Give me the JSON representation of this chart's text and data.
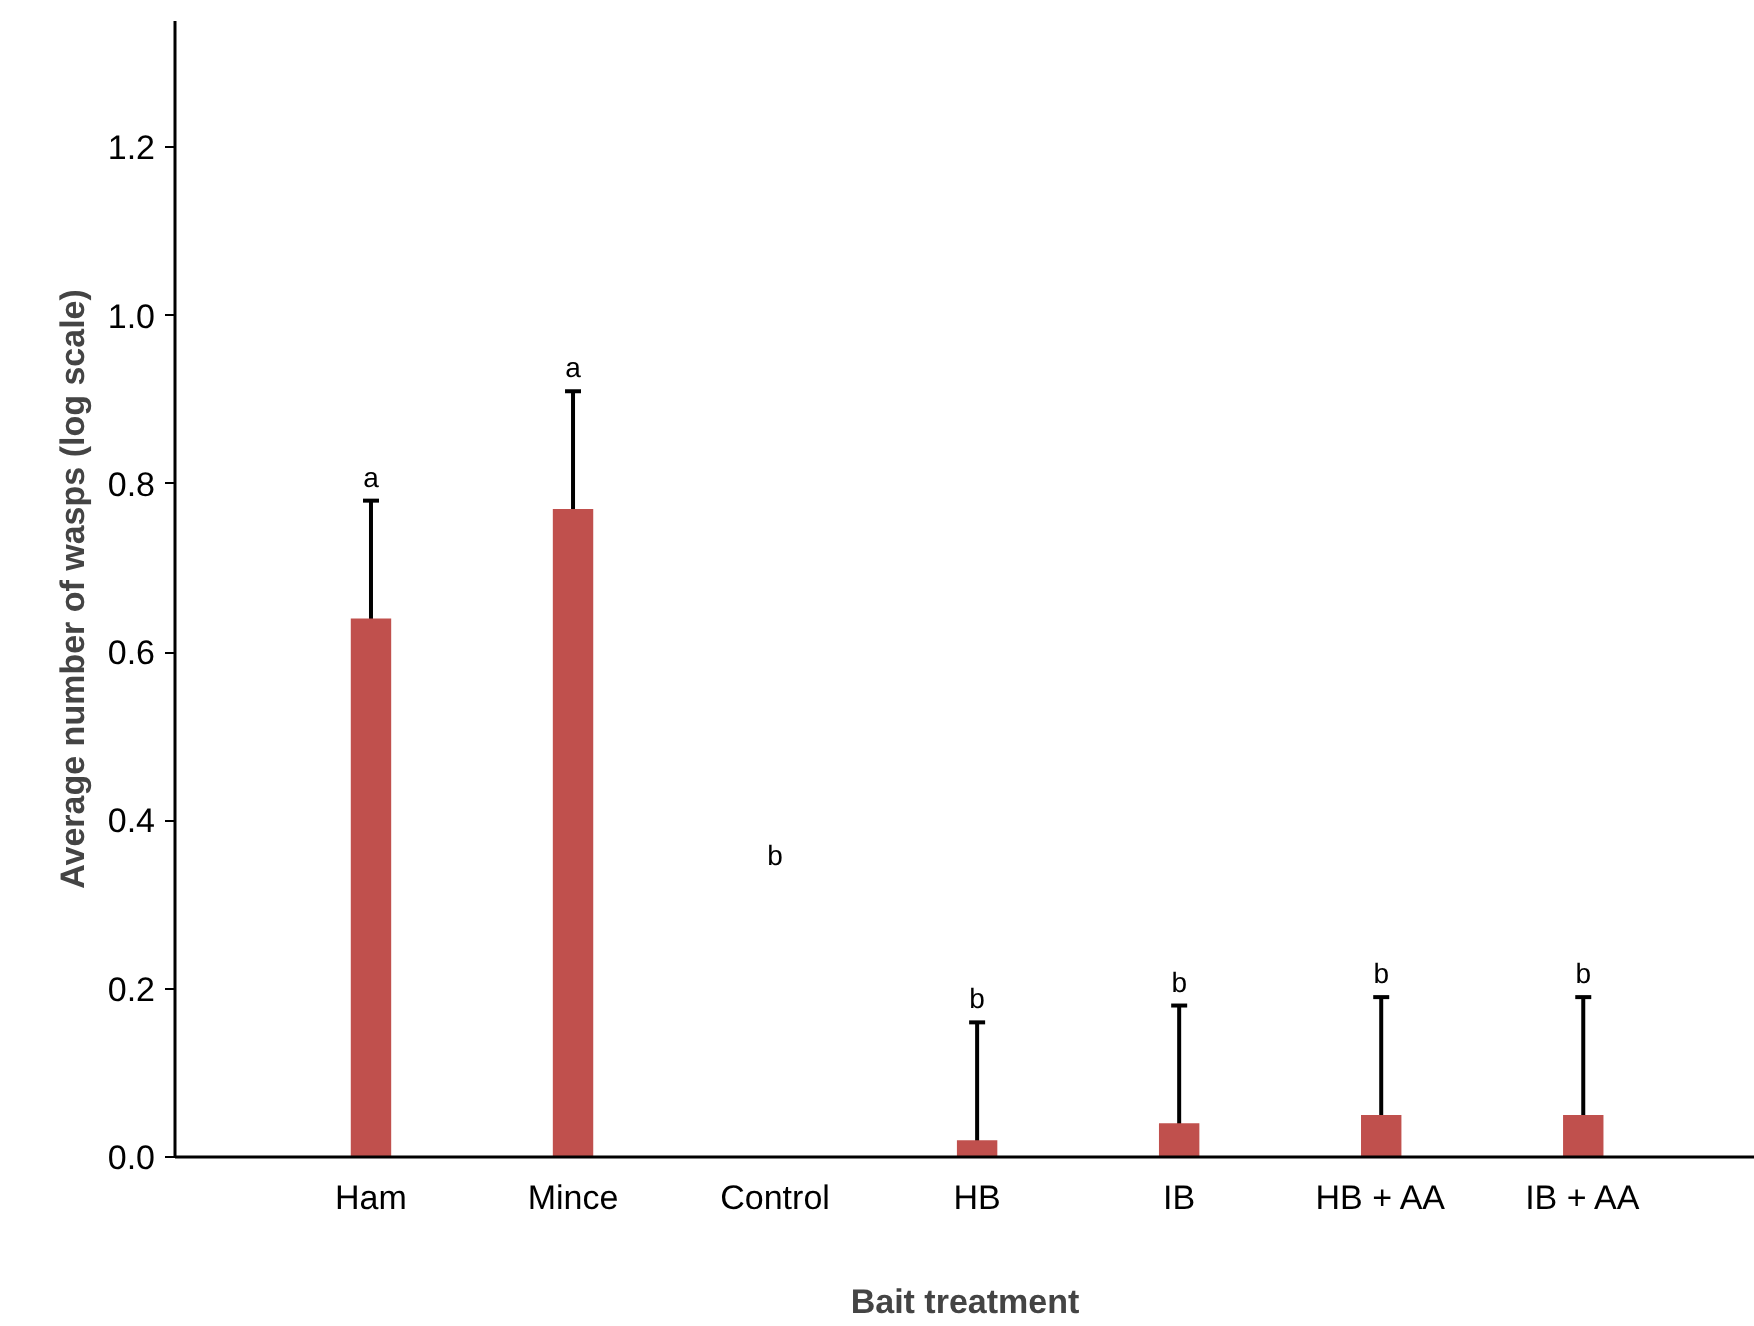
{
  "chart_data": {
    "type": "bar",
    "xlabel": "Bait treatment",
    "ylabel": "Average number of wasps (log scale)",
    "categories": [
      "Ham",
      "Mince",
      "Control",
      "HB",
      "IB",
      "HB + AA",
      "IB + AA"
    ],
    "values": [
      0.64,
      0.77,
      0,
      0.02,
      0.04,
      0.05,
      0.05
    ],
    "errors": [
      0.14,
      0.14,
      null,
      [
        0,
        0.16
      ],
      [
        0,
        0.18
      ],
      [
        0,
        0.19
      ],
      [
        0,
        0.19
      ]
    ],
    "color": "#c0504d",
    "ylim": [
      0,
      1.35
    ],
    "yticks": [
      {
        "value": 0,
        "label": "0.0"
      },
      0.2,
      0.4,
      0.6,
      0.8,
      {
        "value": 1,
        "label": "1.0"
      },
      1.2
    ],
    "grid": false,
    "annotations": [
      {
        "text": "a",
        "x": "Ham",
        "y": 0.78
      },
      {
        "text": "a",
        "x": "Mince",
        "y": 0.91
      },
      "b",
      {
        "text": "b",
        "x": "HB",
        "y": 0.16
      },
      {
        "text": "b",
        "x": "IB",
        "y": 0.18
      },
      {
        "text": "b",
        "x": "HB + AA",
        "y": 0.19
      },
      {
        "text": "b",
        "x": "IB + AA",
        "y": 0.19
      }
    ]
  }
}
